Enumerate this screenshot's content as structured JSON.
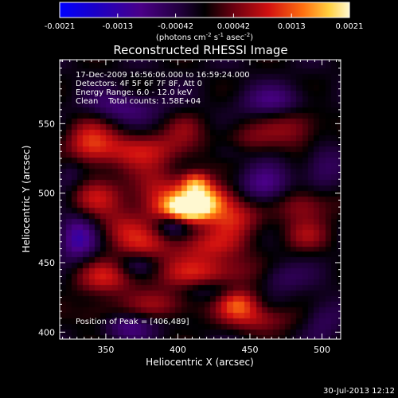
{
  "colorbar": {
    "ticks": [
      "-0.0021",
      "-0.0013",
      "-0.00042",
      "0.00042",
      "0.0013",
      "0.0021"
    ],
    "units_prefix": "(photons cm",
    "units_exp1": "-2",
    "units_mid1": " s",
    "units_exp2": "-1",
    "units_mid2": " asec",
    "units_exp3": "-2",
    "units_suffix": ")",
    "range": [
      -0.0021,
      0.0021
    ]
  },
  "chart_data": {
    "type": "heatmap",
    "title": "Reconstructed RHESSI Image",
    "xlabel": "Heliocentric X (arcsec)",
    "ylabel": "Heliocentric Y (arcsec)",
    "xlim": [
      318,
      513
    ],
    "ylim": [
      395,
      596
    ],
    "xticks": [
      "350",
      "400",
      "450",
      "500"
    ],
    "yticks": [
      "400",
      "450",
      "500",
      "550"
    ],
    "colormap": "black-purple-red-orange-yellow-white",
    "peak": [
      406,
      489
    ],
    "annotations": {
      "time": "17-Dec-2009 16:56:06.000 to 16:59:24.000",
      "detectors": "Detectors: 4F 5F 6F 7F 8F, Att 0",
      "energy": "Energy Range: 6.0 - 12.0 keV",
      "clean": "Clean    Total counts: 1.58E+04",
      "peak_label": "Position of Peak = [406,489]"
    },
    "blobs": [
      {
        "x": 406,
        "y": 489,
        "sx": 12,
        "sy": 7,
        "v": 0.0021
      },
      {
        "x": 420,
        "y": 497,
        "sx": 13,
        "sy": 8,
        "v": 0.0014
      },
      {
        "x": 412,
        "y": 508,
        "sx": 7,
        "sy": 6,
        "v": 0.0012
      },
      {
        "x": 385,
        "y": 500,
        "sx": 14,
        "sy": 14,
        "v": 0.0009
      },
      {
        "x": 438,
        "y": 483,
        "sx": 14,
        "sy": 10,
        "v": 0.001
      },
      {
        "x": 372,
        "y": 532,
        "sx": 28,
        "sy": 9,
        "v": 0.0009
      },
      {
        "x": 338,
        "y": 538,
        "sx": 12,
        "sy": 14,
        "v": 0.0008
      },
      {
        "x": 342,
        "y": 497,
        "sx": 14,
        "sy": 10,
        "v": 0.0008
      },
      {
        "x": 360,
        "y": 474,
        "sx": 12,
        "sy": 10,
        "v": 0.0007
      },
      {
        "x": 418,
        "y": 463,
        "sx": 20,
        "sy": 8,
        "v": 0.0008
      },
      {
        "x": 377,
        "y": 463,
        "sx": 12,
        "sy": 9,
        "v": 0.0006
      },
      {
        "x": 350,
        "y": 440,
        "sx": 16,
        "sy": 9,
        "v": 0.0009
      },
      {
        "x": 420,
        "y": 443,
        "sx": 26,
        "sy": 9,
        "v": 0.001
      },
      {
        "x": 442,
        "y": 421,
        "sx": 10,
        "sy": 7,
        "v": 0.0011
      },
      {
        "x": 455,
        "y": 410,
        "sx": 18,
        "sy": 7,
        "v": 0.0008
      },
      {
        "x": 390,
        "y": 420,
        "sx": 18,
        "sy": 8,
        "v": 0.0007
      },
      {
        "x": 488,
        "y": 492,
        "sx": 14,
        "sy": 9,
        "v": 0.0008
      },
      {
        "x": 488,
        "y": 470,
        "sx": 12,
        "sy": 8,
        "v": 0.0006
      },
      {
        "x": 483,
        "y": 548,
        "sx": 14,
        "sy": 12,
        "v": 0.0007
      },
      {
        "x": 447,
        "y": 540,
        "sx": 14,
        "sy": 9,
        "v": 0.0005
      },
      {
        "x": 345,
        "y": 413,
        "sx": 12,
        "sy": 8,
        "v": 0.0005
      },
      {
        "x": 405,
        "y": 548,
        "sx": 10,
        "sy": 8,
        "v": 0.0004
      },
      {
        "x": 330,
        "y": 468,
        "sx": 9,
        "sy": 12,
        "v": -0.0011
      },
      {
        "x": 372,
        "y": 448,
        "sx": 10,
        "sy": 6,
        "v": -0.0006
      },
      {
        "x": 396,
        "y": 478,
        "sx": 8,
        "sy": 6,
        "v": -0.0008
      },
      {
        "x": 460,
        "y": 505,
        "sx": 12,
        "sy": 10,
        "v": -0.0009
      },
      {
        "x": 470,
        "y": 440,
        "sx": 12,
        "sy": 8,
        "v": -0.0006
      },
      {
        "x": 365,
        "y": 405,
        "sx": 14,
        "sy": 7,
        "v": -0.0008
      },
      {
        "x": 420,
        "y": 430,
        "sx": 14,
        "sy": 6,
        "v": -0.0005
      },
      {
        "x": 360,
        "y": 562,
        "sx": 20,
        "sy": 8,
        "v": -0.0007
      },
      {
        "x": 468,
        "y": 566,
        "sx": 18,
        "sy": 8,
        "v": -0.0007
      },
      {
        "x": 500,
        "y": 520,
        "sx": 10,
        "sy": 12,
        "v": -0.0006
      },
      {
        "x": 325,
        "y": 515,
        "sx": 8,
        "sy": 10,
        "v": -0.0005
      },
      {
        "x": 435,
        "y": 530,
        "sx": 10,
        "sy": 6,
        "v": -0.0004
      },
      {
        "x": 500,
        "y": 410,
        "sx": 10,
        "sy": 10,
        "v": -0.0005
      }
    ]
  },
  "footer": {
    "date": "30-Jul-2013 12:12"
  }
}
